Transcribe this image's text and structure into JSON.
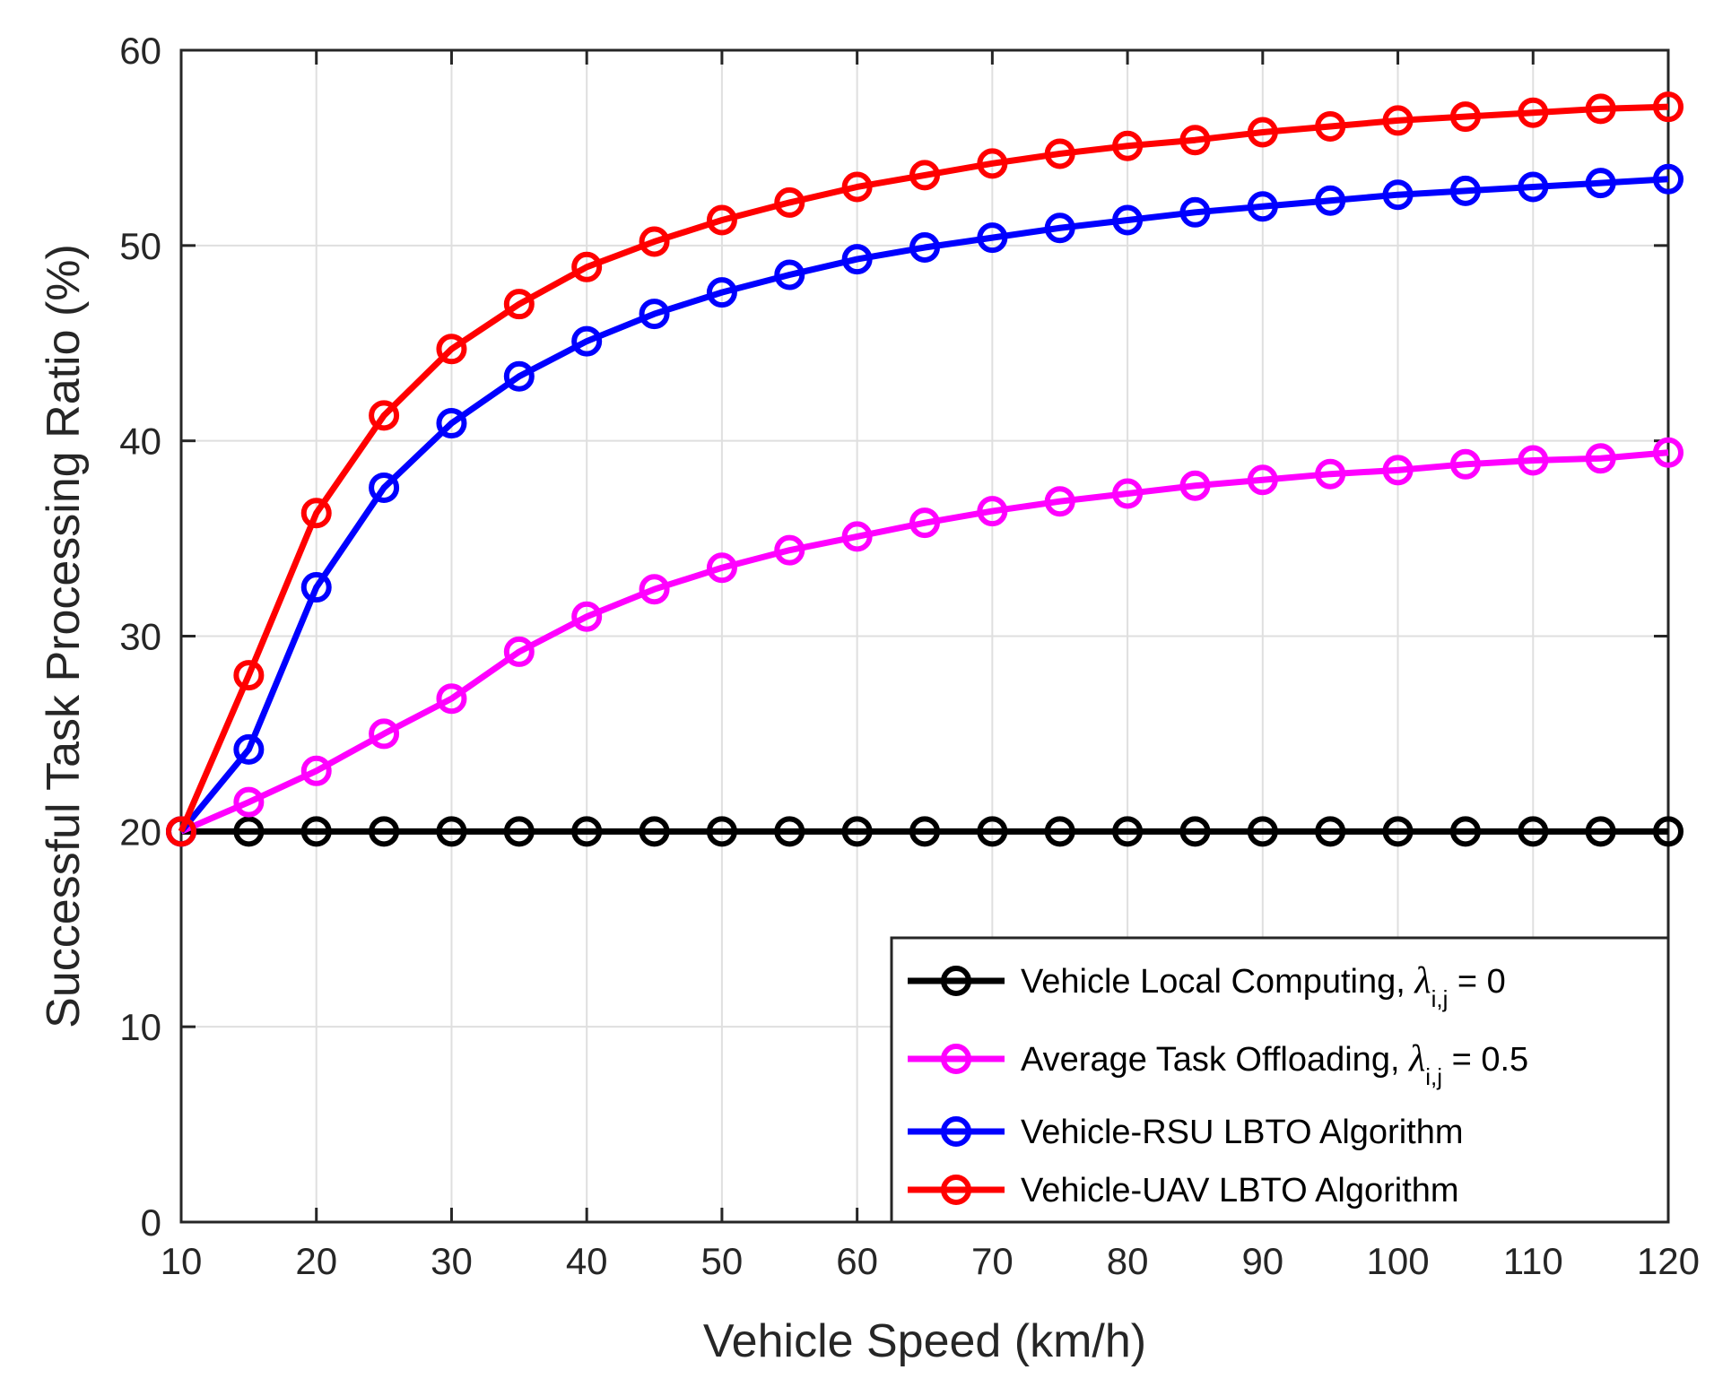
{
  "chart_data": {
    "type": "line",
    "title": "",
    "xlabel": "Vehicle Speed (km/h)",
    "ylabel": "Successful Task Processing Ratio (%)",
    "xlim": [
      10,
      120
    ],
    "ylim": [
      0,
      60
    ],
    "xticks": [
      10,
      20,
      30,
      40,
      50,
      60,
      70,
      80,
      90,
      100,
      110,
      120
    ],
    "yticks": [
      0,
      10,
      20,
      30,
      40,
      50,
      60
    ],
    "grid": true,
    "legend_position": "bottom-right",
    "x": [
      10,
      15,
      20,
      25,
      30,
      35,
      40,
      45,
      50,
      55,
      60,
      65,
      70,
      75,
      80,
      85,
      90,
      95,
      100,
      105,
      110,
      115,
      120
    ],
    "series": [
      {
        "name": "Vehicle Local Computing",
        "legend_prefix": "Vehicle Local Computing, ",
        "legend_symbol": "λ",
        "legend_sub": "i,j",
        "legend_suffix": " = 0",
        "color": "#000000",
        "values": [
          20,
          20,
          20,
          20,
          20,
          20,
          20,
          20,
          20,
          20,
          20,
          20,
          20,
          20,
          20,
          20,
          20,
          20,
          20,
          20,
          20,
          20,
          20
        ]
      },
      {
        "name": "Average Task Offloading",
        "legend_prefix": "Average Task Offloading, ",
        "legend_symbol": "λ",
        "legend_sub": "i,j",
        "legend_suffix": " = 0.5",
        "color": "#ff00ff",
        "values": [
          20,
          21.5,
          23.1,
          25.0,
          26.8,
          29.2,
          31.0,
          32.4,
          33.5,
          34.4,
          35.1,
          35.8,
          36.4,
          36.9,
          37.3,
          37.7,
          38.0,
          38.3,
          38.5,
          38.8,
          39.0,
          39.1,
          39.4
        ]
      },
      {
        "name": "Vehicle-RSU LBTO Algorithm",
        "legend_prefix": "Vehicle-RSU LBTO Algorithm",
        "legend_symbol": "",
        "legend_sub": "",
        "legend_suffix": "",
        "color": "#0000ff",
        "values": [
          20,
          24.2,
          32.5,
          37.6,
          40.9,
          43.3,
          45.1,
          46.5,
          47.6,
          48.5,
          49.3,
          49.9,
          50.4,
          50.9,
          51.3,
          51.7,
          52.0,
          52.3,
          52.6,
          52.8,
          53.0,
          53.2,
          53.4
        ]
      },
      {
        "name": "Vehicle-UAV LBTO Algorithm",
        "legend_prefix": "Vehicle-UAV LBTO Algorithm",
        "legend_symbol": "",
        "legend_sub": "",
        "legend_suffix": "",
        "color": "#ff0000",
        "values": [
          20,
          28.0,
          36.3,
          41.3,
          44.7,
          47.0,
          48.9,
          50.2,
          51.3,
          52.2,
          53.0,
          53.6,
          54.2,
          54.7,
          55.1,
          55.4,
          55.8,
          56.1,
          56.4,
          56.6,
          56.8,
          57.0,
          57.1
        ]
      }
    ]
  }
}
